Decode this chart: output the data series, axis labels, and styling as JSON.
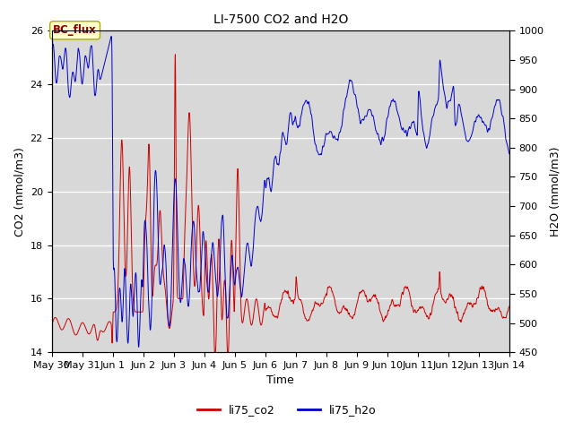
{
  "title": "LI-7500 CO2 and H2O",
  "xlabel": "Time",
  "ylabel_left": "CO2 (mmol/m3)",
  "ylabel_right": "H2O (mmol/m3)",
  "co2_color": "#cc0000",
  "h2o_color": "#0000cc",
  "ylim_left": [
    14,
    26
  ],
  "ylim_right": [
    450,
    1000
  ],
  "yticks_left": [
    14,
    16,
    18,
    20,
    22,
    24,
    26
  ],
  "yticks_right": [
    450,
    500,
    550,
    600,
    650,
    700,
    750,
    800,
    850,
    900,
    950,
    1000
  ],
  "annotation_text": "BC_flux",
  "annotation_color": "#8b0000",
  "annotation_bg": "#ffffcc",
  "background_color": "#d8d8d8",
  "legend_labels": [
    "li75_co2",
    "li75_h2o"
  ],
  "xtick_labels": [
    "May 30",
    "May 31",
    "Jun 1",
    "Jun 2",
    "Jun 3",
    "Jun 4",
    "Jun 5",
    "Jun 6",
    "Jun 7",
    "Jun 8",
    "Jun 9",
    "Jun 10",
    "Jun 11",
    "Jun 12",
    "Jun 13",
    "Jun 14"
  ],
  "xtick_positions": [
    0,
    1,
    2,
    3,
    4,
    5,
    6,
    7,
    8,
    9,
    10,
    11,
    12,
    13,
    14,
    15
  ]
}
